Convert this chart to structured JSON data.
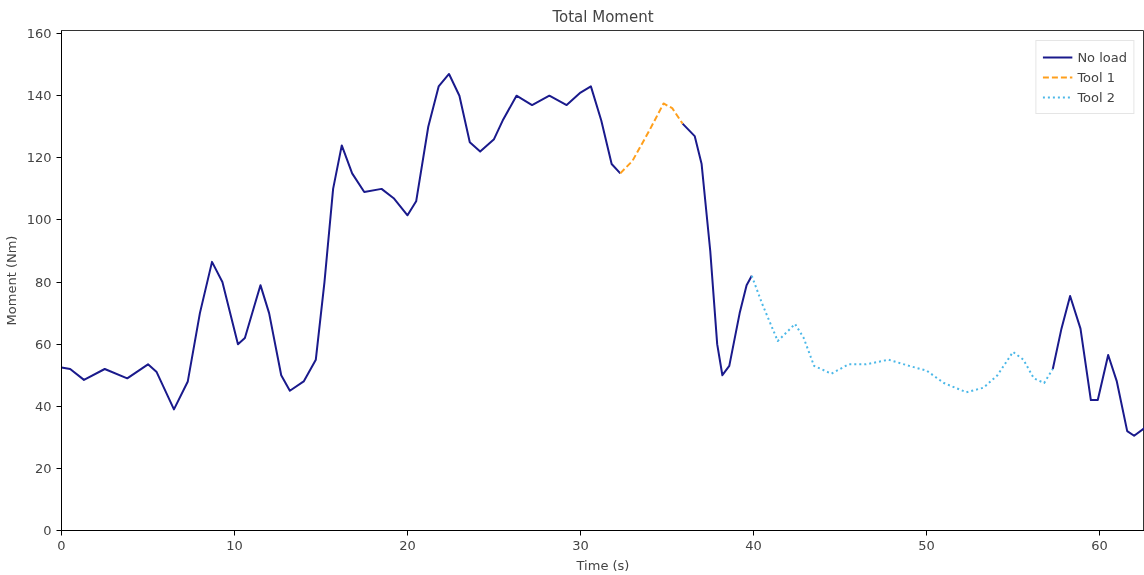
{
  "chart_data": {
    "type": "line",
    "title": "Total Moment",
    "xlabel": "Time (s)",
    "ylabel": "Moment (Nm)",
    "xlim": [
      0,
      62.6
    ],
    "ylim": [
      0,
      161
    ],
    "xticks": [
      0,
      10,
      20,
      30,
      40,
      50,
      60
    ],
    "yticks": [
      0,
      20,
      40,
      60,
      80,
      100,
      120,
      140,
      160
    ],
    "grid": false,
    "legend": "top right",
    "series": [
      {
        "name": "No load",
        "color": "#1a1a8c",
        "line_style": "solid",
        "x": [
          0,
          0.5,
          1.3,
          2.5,
          3.8,
          5,
          5.5,
          6.5,
          7.3,
          8,
          8.7,
          9.3,
          10.2,
          10.6,
          11.5,
          12,
          12.7,
          13.2,
          14,
          14.7,
          15.2,
          15.7,
          16.2,
          16.8,
          17.5,
          18.5,
          19.2,
          20,
          20.5,
          21.2,
          21.8,
          22.4,
          23,
          23.6,
          24.2,
          25,
          25.5,
          26.3,
          27.2,
          28.2,
          29.2,
          30,
          30.6,
          31.2,
          31.8,
          32.3,
          34,
          35.9,
          36.6,
          37,
          37.5,
          37.9,
          38.2,
          38.6,
          39.2,
          39.6,
          39.9,
          48,
          57.3,
          57.8,
          58.3,
          58.9,
          59.5,
          59.9,
          60.5,
          61,
          61.6,
          62,
          62.6
        ],
        "values": [
          52.5,
          52,
          48.5,
          52,
          49,
          53.5,
          51,
          39,
          48,
          70,
          86.5,
          80,
          60,
          62,
          79,
          70,
          50,
          45,
          48,
          55,
          80,
          110,
          124,
          115,
          109,
          110,
          107,
          101.5,
          106,
          130,
          143,
          147,
          140,
          125,
          122,
          126,
          132,
          140,
          137,
          140,
          137,
          141,
          143,
          132,
          118,
          115,
          null,
          131,
          127,
          118,
          90,
          60,
          50,
          53,
          70,
          79,
          82,
          null,
          52,
          65,
          75.5,
          65,
          42,
          42,
          56.5,
          48,
          32,
          30.5,
          33
        ]
      },
      {
        "name": "Tool 1",
        "color": "#ff9f1c",
        "line_style": "dashed",
        "x": [
          32.3,
          33,
          34,
          34.8,
          35.3,
          35.9
        ],
        "values": [
          115,
          119,
          129,
          137.5,
          136,
          131
        ]
      },
      {
        "name": "Tool 2",
        "color": "#4cb8e8",
        "line_style": "dotted",
        "x": [
          39.9,
          40.5,
          41.4,
          42.4,
          42.9,
          43.5,
          44.5,
          45.5,
          46.5,
          47.8,
          49,
          50,
          51,
          52.3,
          53.3,
          54.1,
          55,
          55.6,
          56.2,
          56.8,
          57.3
        ],
        "values": [
          82,
          73,
          61,
          66.5,
          62,
          53,
          50.5,
          53.5,
          53.5,
          55,
          53,
          51.5,
          47.5,
          44.5,
          46,
          50,
          57.5,
          55,
          49,
          47.5,
          52
        ]
      }
    ]
  }
}
